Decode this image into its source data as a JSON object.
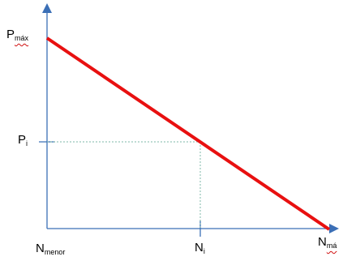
{
  "labels": {
    "p_max": {
      "main": "P",
      "sub": "máx"
    },
    "p_i": {
      "main": "P",
      "sub": "i"
    },
    "n_menor": {
      "main": "N",
      "sub": "menor"
    },
    "n_i": {
      "main": "N",
      "sub": "i"
    },
    "n_max": {
      "main": "N",
      "sub": "má"
    }
  },
  "colors": {
    "axis": "#3b6fb6",
    "line": "#e81010",
    "guide": "#7fb8a8"
  }
}
